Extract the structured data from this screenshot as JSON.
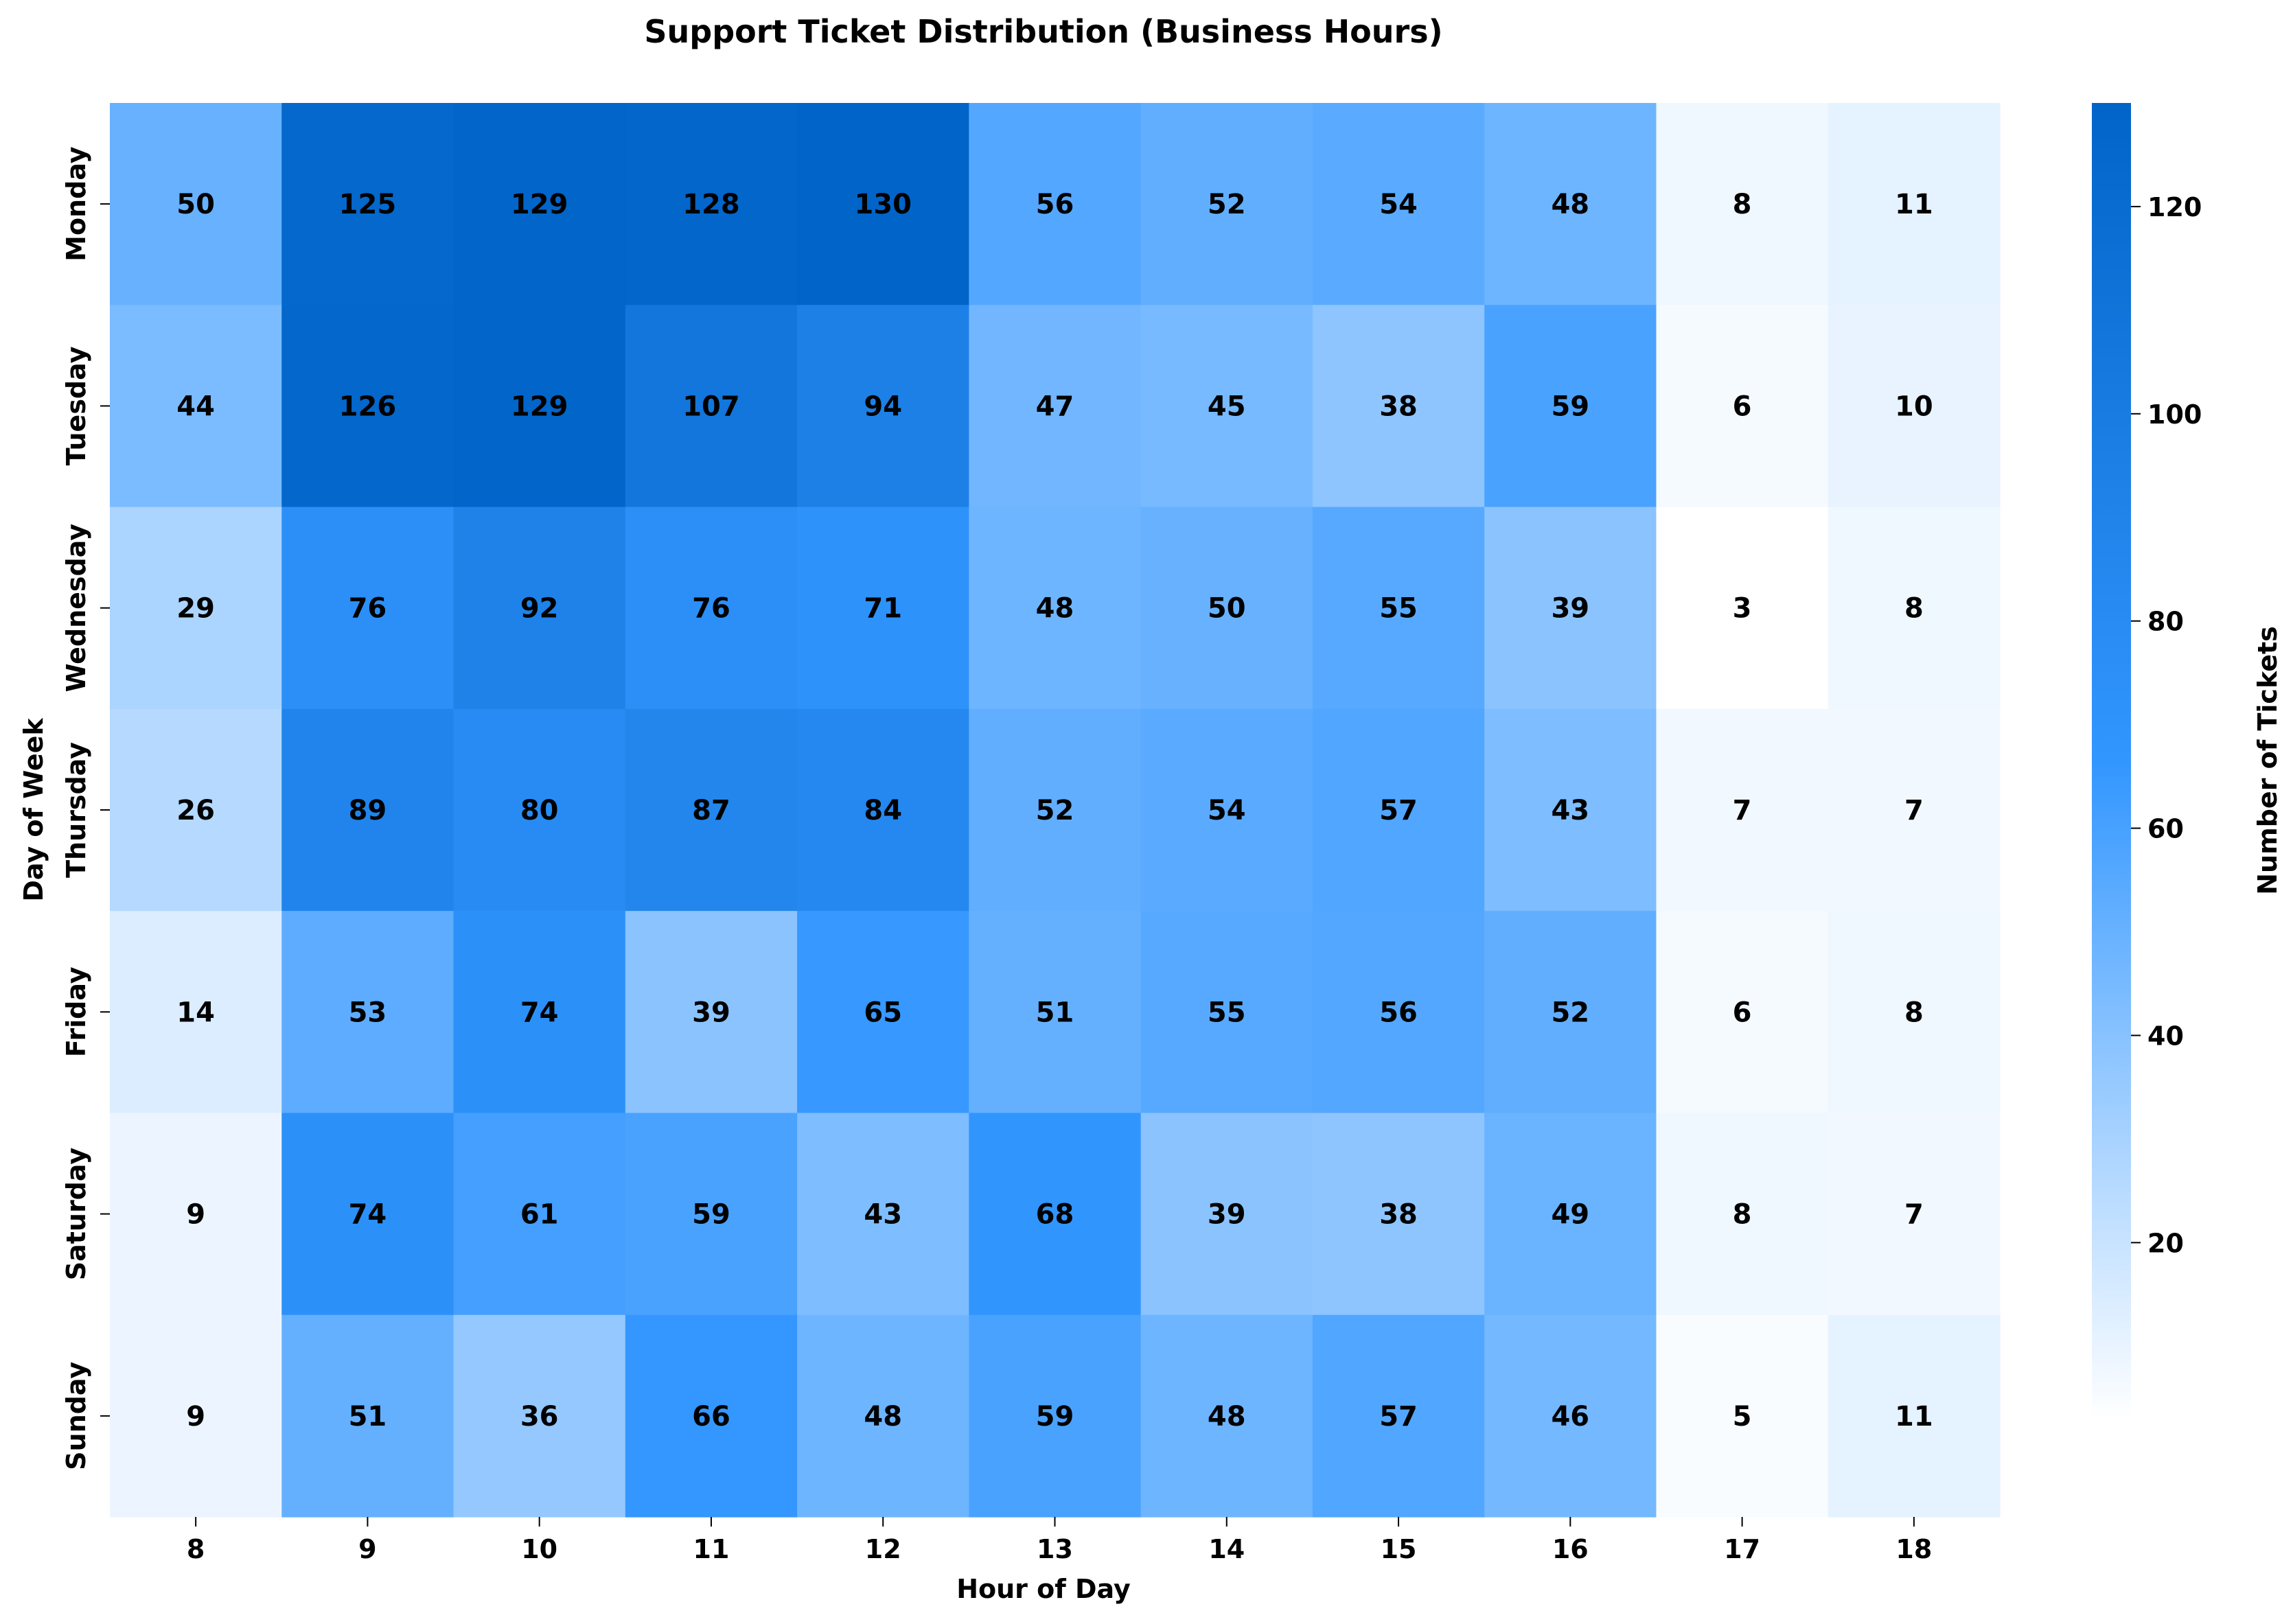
{
  "chart_data": {
    "type": "heatmap",
    "title": "Support Ticket Distribution (Business Hours)",
    "xlabel": "Hour of Day",
    "ylabel": "Day of Week",
    "x": [
      "8",
      "9",
      "10",
      "11",
      "12",
      "13",
      "14",
      "15",
      "16",
      "17",
      "18"
    ],
    "y": [
      "Monday",
      "Tuesday",
      "Wednesday",
      "Thursday",
      "Friday",
      "Saturday",
      "Sunday"
    ],
    "values": [
      [
        50,
        125,
        129,
        128,
        130,
        56,
        52,
        54,
        48,
        8,
        11
      ],
      [
        44,
        126,
        129,
        107,
        94,
        47,
        45,
        38,
        59,
        6,
        10
      ],
      [
        29,
        76,
        92,
        76,
        71,
        48,
        50,
        55,
        39,
        3,
        8
      ],
      [
        26,
        89,
        80,
        87,
        84,
        52,
        54,
        57,
        43,
        7,
        7
      ],
      [
        14,
        53,
        74,
        39,
        65,
        51,
        55,
        56,
        52,
        6,
        8
      ],
      [
        9,
        74,
        61,
        59,
        43,
        68,
        39,
        38,
        49,
        8,
        7
      ],
      [
        9,
        51,
        36,
        66,
        48,
        59,
        48,
        57,
        46,
        5,
        11
      ]
    ],
    "colorbar": {
      "label": "Number of Tickets",
      "range": [
        3,
        130
      ],
      "ticks": [
        20,
        40,
        60,
        80,
        100,
        120
      ]
    },
    "colors": [
      "#ffffff",
      "#3296ff",
      "#0064c8"
    ]
  }
}
